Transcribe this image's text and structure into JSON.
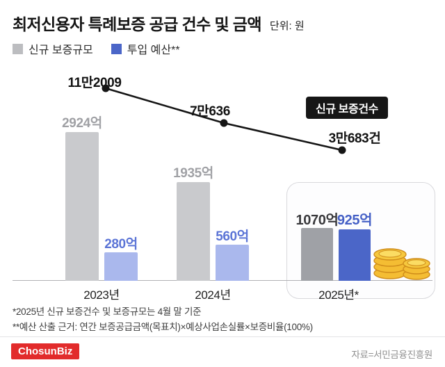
{
  "header": {
    "title": "최저신용자 특례보증 공급 건수 및 금액",
    "unit": "단위: 원"
  },
  "legend": {
    "items": [
      {
        "label": "신규 보증규모",
        "color": "#bcbdc0"
      },
      {
        "label": "투입 예산**",
        "color": "#4b66c8"
      }
    ]
  },
  "chart_data": {
    "type": "bar",
    "title": "최저신용자 특례보증 공급 건수 및 금액",
    "unit_label": "단위: 원",
    "categories": [
      "2023년",
      "2024년",
      "2025년*"
    ],
    "series": [
      {
        "name": "신규 보증규모",
        "values": [
          2924,
          1935,
          1070
        ],
        "value_labels": [
          "2924억",
          "1935억",
          "1070억"
        ],
        "bar_colors": [
          "#c9cacd",
          "#c9cacd",
          "#9fa1a6"
        ],
        "label_colors": [
          "#a0a1a5",
          "#a0a1a5",
          "#39393c"
        ]
      },
      {
        "name": "투입 예산**",
        "values": [
          280,
          560,
          925
        ],
        "value_labels": [
          "280억",
          "560억",
          "925억"
        ],
        "bar_colors": [
          "#aab8ed",
          "#aab8ed",
          "#4b66c8"
        ],
        "label_colors": [
          "#5b74d6",
          "#5b74d6",
          "#4560c6"
        ]
      }
    ],
    "line": {
      "name": "신규 보증건수",
      "values": [
        112009,
        70636,
        30683
      ],
      "point_labels": [
        "11만2009",
        "7만636",
        "3만683건"
      ]
    },
    "line_badge": "신규 보증건수",
    "highlight_category": "2025년*",
    "legend_position": "top-left",
    "grid": false
  },
  "footnotes": [
    "*2025년 신규 보증건수 및 보증규모는 4월 말 기준",
    "**예산 산출 근거: 연간 보증공급금액(목표치)×예상사업손실률×보증비율(100%)"
  ],
  "footer": {
    "logo": "ChosunBiz",
    "source": "자료=서민금융진흥원"
  }
}
